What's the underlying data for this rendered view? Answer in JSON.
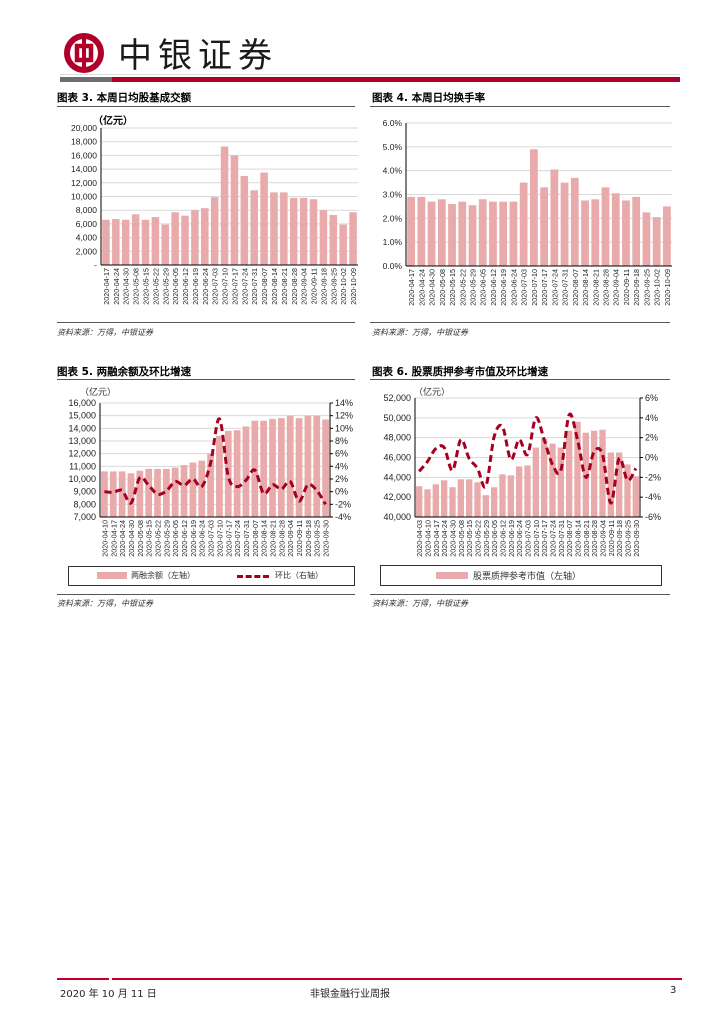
{
  "header": {
    "brand": "中银证券",
    "logo_icon": "bank-of-china-logo-icon",
    "brand_color": "#b0002a"
  },
  "figures": [
    {
      "title": "图表 3. 本周日均股基成交额",
      "source": "资料来源：万得，中银证券"
    },
    {
      "title": "图表 4. 本周日均换手率",
      "source": "资料来源：万得，中银证券"
    },
    {
      "title": "图表 5. 两融余额及环比增速",
      "source": "资料来源：万得，中银证券"
    },
    {
      "title": "图表 6. 股票质押参考市值及环比增速",
      "source": "资料来源：万得，中银证券"
    }
  ],
  "chart_data": [
    {
      "type": "bar",
      "title": "图表 3. 本周日均股基成交额",
      "ylabel": "（亿元）",
      "categories": [
        "2020-04-17",
        "2020-04-24",
        "2020-04-30",
        "2020-05-08",
        "2020-05-15",
        "2020-05-22",
        "2020-05-29",
        "2020-06-05",
        "2020-06-12",
        "2020-06-19",
        "2020-06-24",
        "2020-07-03",
        "2020-07-10",
        "2020-07-17",
        "2020-07-24",
        "2020-07-31",
        "2020-08-07",
        "2020-08-14",
        "2020-08-21",
        "2020-08-28",
        "2020-09-04",
        "2020-09-11",
        "2020-09-18",
        "2020-09-25",
        "2020-10-02",
        "2020-10-09"
      ],
      "values": [
        6600,
        6700,
        6600,
        7400,
        6600,
        7000,
        5900,
        7700,
        7200,
        8000,
        8300,
        9900,
        17300,
        16000,
        13000,
        10900,
        13500,
        10600,
        10600,
        9800,
        9800,
        9600,
        8000,
        7300,
        5900,
        7700
      ],
      "ylim": [
        0,
        20000
      ],
      "yticks": [
        0,
        2000,
        4000,
        6000,
        8000,
        10000,
        12000,
        14000,
        16000,
        18000,
        20000
      ],
      "ytick_labels": [
        "-",
        "2,000",
        "4,000",
        "6,000",
        "8,000",
        "10,000",
        "12,000",
        "14,000",
        "16,000",
        "18,000",
        "20,000"
      ],
      "grid": true,
      "bar_color": "#e8aaaa"
    },
    {
      "type": "bar",
      "title": "图表 4. 本周日均换手率",
      "categories": [
        "2020-04-17",
        "2020-04-24",
        "2020-04-30",
        "2020-05-08",
        "2020-05-15",
        "2020-05-22",
        "2020-05-29",
        "2020-06-05",
        "2020-06-12",
        "2020-06-19",
        "2020-06-24",
        "2020-07-03",
        "2020-07-10",
        "2020-07-17",
        "2020-07-24",
        "2020-07-31",
        "2020-08-07",
        "2020-08-14",
        "2020-08-21",
        "2020-08-28",
        "2020-09-04",
        "2020-09-11",
        "2020-09-18",
        "2020-09-25",
        "2020-10-02",
        "2020-10-09"
      ],
      "values": [
        2.9,
        2.9,
        2.7,
        2.8,
        2.6,
        2.7,
        2.55,
        2.8,
        2.7,
        2.7,
        2.7,
        3.5,
        4.9,
        3.3,
        4.05,
        3.5,
        3.7,
        2.75,
        2.8,
        3.3,
        3.05,
        2.75,
        2.9,
        2.25,
        2.05,
        2.5
      ],
      "unit": "%",
      "ylim": [
        0,
        6
      ],
      "yticks": [
        0,
        1,
        2,
        3,
        4,
        5,
        6
      ],
      "ytick_labels": [
        "0.0%",
        "1.0%",
        "2.0%",
        "3.0%",
        "4.0%",
        "5.0%",
        "6.0%"
      ],
      "grid": true,
      "bar_color": "#e8aaaa"
    },
    {
      "type": "bar+line",
      "title": "图表 5. 两融余额及环比增速",
      "ylabel": "（亿元）",
      "categories": [
        "2020-04-10",
        "2020-04-17",
        "2020-04-24",
        "2020-04-30",
        "2020-05-08",
        "2020-05-15",
        "2020-05-22",
        "2020-05-29",
        "2020-06-05",
        "2020-06-12",
        "2020-06-19",
        "2020-06-24",
        "2020-07-03",
        "2020-07-10",
        "2020-07-17",
        "2020-07-24",
        "2020-07-31",
        "2020-08-07",
        "2020-08-14",
        "2020-08-21",
        "2020-08-28",
        "2020-09-04",
        "2020-09-11",
        "2020-09-18",
        "2020-09-25",
        "2020-09-30"
      ],
      "series": [
        {
          "name": "两融余额（左轴）",
          "axis": "left",
          "type": "bar",
          "color": "#e8aaaa",
          "values": [
            10600,
            10600,
            10600,
            10450,
            10650,
            10800,
            10800,
            10800,
            10900,
            11100,
            11300,
            11450,
            12000,
            13400,
            13800,
            13850,
            14150,
            14600,
            14600,
            14750,
            14800,
            15000,
            14800,
            15000,
            15000,
            14700
          ]
        },
        {
          "name": "环比（右轴）",
          "axis": "right",
          "type": "line",
          "color": "#a50021",
          "unit": "%",
          "values": [
            0,
            -0.1,
            0.2,
            -1.8,
            2.2,
            1.0,
            -0.4,
            0.1,
            1.6,
            1.0,
            2.0,
            0.8,
            4.5,
            11.5,
            2.4,
            0.8,
            1.8,
            3.4,
            -0.3,
            1.1,
            0.4,
            1.6,
            -1.5,
            1.1,
            0.2,
            -2.0
          ]
        }
      ],
      "ylim": [
        7000,
        16000
      ],
      "yticks": [
        7000,
        8000,
        9000,
        10000,
        11000,
        12000,
        13000,
        14000,
        15000,
        16000
      ],
      "ytick_labels": [
        "7,000",
        "8,000",
        "9,000",
        "10,000",
        "11,000",
        "12,000",
        "13,000",
        "14,000",
        "15,000",
        "16,000"
      ],
      "y2lim": [
        -4,
        14
      ],
      "y2ticks": [
        -4,
        -2,
        0,
        2,
        4,
        6,
        8,
        10,
        12,
        14
      ],
      "y2tick_labels": [
        "-4%",
        "-2%",
        "0%",
        "2%",
        "4%",
        "6%",
        "8%",
        "10%",
        "12%",
        "14%"
      ],
      "legend": "bottom",
      "grid": true
    },
    {
      "type": "bar+line",
      "title": "图表 6. 股票质押参考市值及环比增速",
      "ylabel": "（亿元）",
      "categories": [
        "2020-04-03",
        "2020-04-10",
        "2020-04-17",
        "2020-04-24",
        "2020-04-30",
        "2020-05-08",
        "2020-05-15",
        "2020-05-22",
        "2020-05-29",
        "2020-06-05",
        "2020-06-12",
        "2020-06-19",
        "2020-06-24",
        "2020-07-03",
        "2020-07-10",
        "2020-07-17",
        "2020-07-24",
        "2020-07-31",
        "2020-08-07",
        "2020-08-14",
        "2020-08-21",
        "2020-08-28",
        "2020-09-04",
        "2020-09-11",
        "2020-09-18",
        "2020-09-25",
        "2020-09-30"
      ],
      "series": [
        {
          "name": "股票质押参考市值（左轴）",
          "axis": "left",
          "type": "bar",
          "color": "#e8aaaa",
          "values": [
            43100,
            42800,
            43300,
            43700,
            43000,
            43800,
            43800,
            43500,
            42200,
            43000,
            44300,
            44200,
            45100,
            45200,
            47000,
            47900,
            47400,
            47000,
            48700,
            49600,
            48500,
            48700,
            48800,
            46500,
            46500,
            45300,
            44100
          ]
        },
        {
          "name": "环比（右轴）",
          "axis": "right",
          "type": "line",
          "color": "#a50021",
          "unit": "%",
          "in_legend": false,
          "values": [
            -1.4,
            -0.4,
            0.9,
            1.0,
            -1.3,
            1.8,
            -0.1,
            -1.1,
            -2.9,
            2.1,
            3.1,
            -0.2,
            1.8,
            0.3,
            4.0,
            1.8,
            -0.7,
            -1.3,
            4.3,
            1.8,
            -2.0,
            0.6,
            0.3,
            -4.6,
            -0.1,
            -2.3,
            -1.1
          ]
        }
      ],
      "ylim": [
        40000,
        52000
      ],
      "yticks": [
        40000,
        42000,
        44000,
        46000,
        48000,
        50000,
        52000
      ],
      "ytick_labels": [
        "40,000",
        "42,000",
        "44,000",
        "46,000",
        "48,000",
        "50,000",
        "52,000"
      ],
      "y2lim": [
        -6,
        6
      ],
      "y2ticks": [
        -6,
        -4,
        -2,
        0,
        2,
        4,
        6
      ],
      "y2tick_labels": [
        "-6%",
        "-4%",
        "-2%",
        "0%",
        "2%",
        "4%",
        "6%"
      ],
      "legend": "bottom",
      "grid": true
    }
  ],
  "footer": {
    "date": "2020 年 10 月 11 日",
    "report_name": "非银金融行业周报",
    "page_number": "3"
  }
}
